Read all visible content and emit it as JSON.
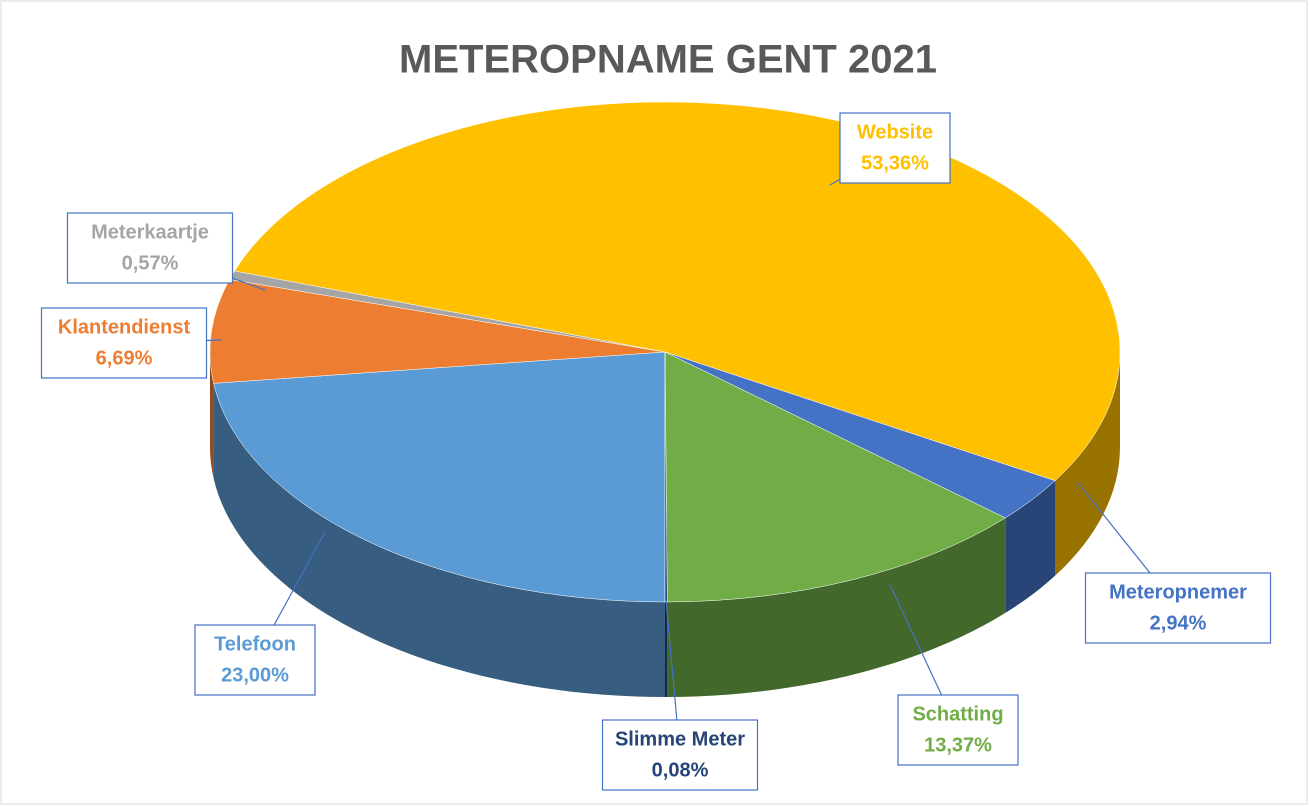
{
  "chart_data": {
    "type": "pie3d",
    "title": "METEROPNAME GENT 2021",
    "categories": [
      "Telefoon",
      "Klantendienst",
      "Meterkaartje",
      "Website",
      "Meteropnemer",
      "Schatting",
      "Slimme Meter"
    ],
    "values": [
      23.0,
      6.69,
      0.57,
      53.36,
      2.94,
      13.37,
      0.08
    ],
    "value_labels": [
      "23,00%",
      "6,69%",
      "0,57%",
      "53,36%",
      "2,94%",
      "13,37%",
      "0,08%"
    ],
    "colors": [
      "#5b9bd5",
      "#ed7d31",
      "#a5a5a5",
      "#ffc000",
      "#4472c4",
      "#70ad47",
      "#264478"
    ]
  }
}
